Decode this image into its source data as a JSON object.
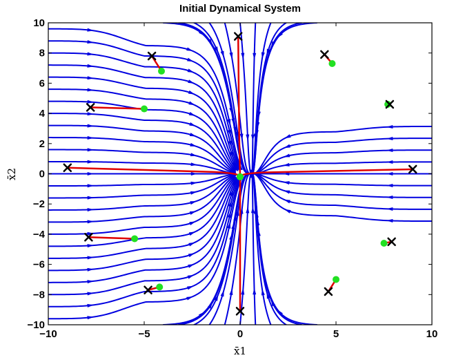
{
  "chart_data": {
    "type": "streamplot",
    "title": "Initial Dynamical System",
    "xlabel": "x̄1",
    "ylabel": "x̄2",
    "xlim": [
      -10,
      10
    ],
    "ylim": [
      -10,
      10
    ],
    "xticks": [
      -10,
      -5,
      0,
      5,
      10
    ],
    "yticks": [
      -10,
      -8,
      -6,
      -4,
      -2,
      0,
      2,
      4,
      6,
      8,
      10
    ],
    "grid": false,
    "colors": {
      "streamlines": "#0000e0",
      "trajectories": "#e00000",
      "start_markers": "#000000",
      "end_markers": "#22e022"
    },
    "trajectories": [
      {
        "start": [
          -4.6,
          7.8
        ],
        "end": [
          -4.1,
          6.8
        ]
      },
      {
        "start": [
          -7.8,
          4.4
        ],
        "end": [
          -5.0,
          4.3
        ]
      },
      {
        "start": [
          -9.0,
          0.4
        ],
        "end": [
          0.0,
          -0.2
        ]
      },
      {
        "start": [
          -0.1,
          9.1
        ],
        "end": [
          0.0,
          -0.2
        ]
      },
      {
        "start": [
          0.0,
          -9.1
        ],
        "end": [
          0.0,
          -0.2
        ]
      },
      {
        "start": [
          9.0,
          0.3
        ],
        "end": [
          0.0,
          -0.2
        ]
      },
      {
        "start": [
          4.4,
          7.9
        ],
        "end": [
          4.8,
          7.3
        ]
      },
      {
        "start": [
          7.8,
          4.6
        ],
        "end": [
          7.7,
          4.6
        ]
      },
      {
        "start": [
          -7.9,
          -4.2
        ],
        "end": [
          -5.5,
          -4.3
        ]
      },
      {
        "start": [
          -4.8,
          -7.7
        ],
        "end": [
          -4.2,
          -7.5
        ]
      },
      {
        "start": [
          4.6,
          -7.8
        ],
        "end": [
          5.0,
          -7.0
        ]
      },
      {
        "start": [
          7.9,
          -4.5
        ],
        "end": [
          7.5,
          -4.6
        ]
      }
    ]
  }
}
